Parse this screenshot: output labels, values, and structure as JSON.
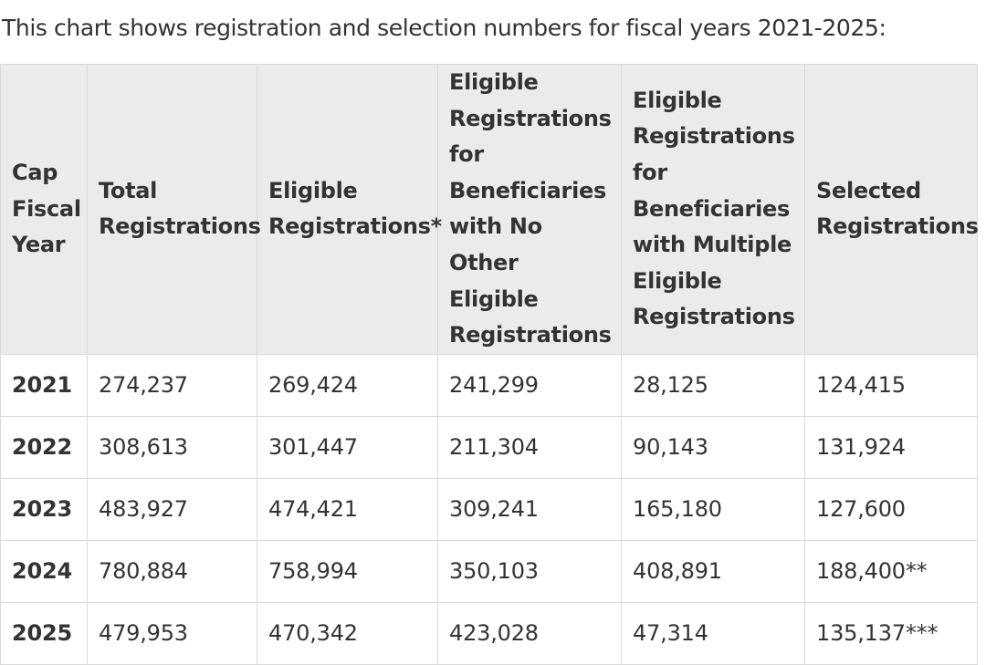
{
  "caption": "This chart shows registration and selection numbers for fiscal years 2021-2025:",
  "table": {
    "headers": [
      "Cap Fiscal Year",
      "Total Registrations",
      "Eligible Registrations*",
      "Eligible Registrations for Beneficiaries with No Other Eligible Registrations",
      "Eligible Registrations for Beneficiaries with Multiple Eligible Registrations",
      "Selected Registrations"
    ],
    "rows": [
      [
        "2021",
        "274,237",
        "269,424",
        "241,299",
        "28,125",
        "124,415"
      ],
      [
        "2022",
        "308,613",
        "301,447",
        "211,304",
        "90,143",
        "131,924"
      ],
      [
        "2023",
        "483,927",
        "474,421",
        "309,241",
        "165,180",
        "127,600"
      ],
      [
        "2024",
        "780,884",
        "758,994",
        "350,103",
        "408,891",
        "188,400**"
      ],
      [
        "2025",
        "479,953",
        "470,342",
        "423,028",
        "47,314",
        "135,137***"
      ]
    ]
  }
}
